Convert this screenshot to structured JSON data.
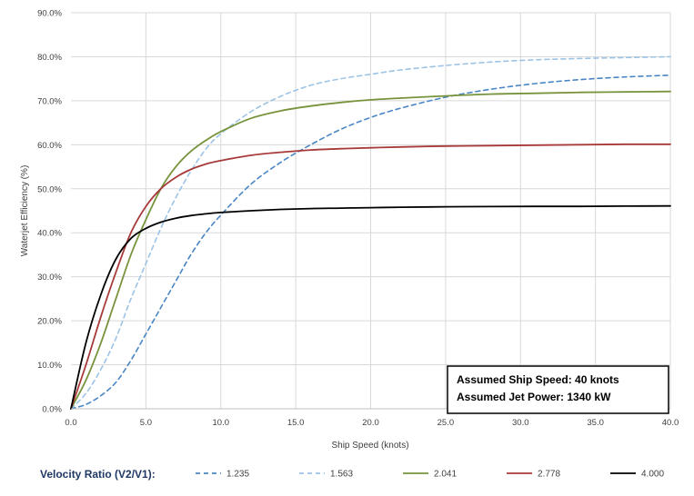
{
  "chart_data": {
    "type": "line",
    "title": "",
    "xlabel": "Ship Speed (knots)",
    "ylabel": "Waterjet Efficiency (%)",
    "xlim": [
      0,
      40
    ],
    "ylim": [
      0,
      90
    ],
    "x_ticks": [
      "0.0",
      "5.0",
      "10.0",
      "15.0",
      "20.0",
      "25.0",
      "30.0",
      "35.0",
      "40.0"
    ],
    "y_ticks": [
      "0.0%",
      "10.0%",
      "20.0%",
      "30.0%",
      "40.0%",
      "50.0%",
      "60.0%",
      "70.0%",
      "80.0%",
      "90.0%"
    ],
    "grid": true,
    "legend_title": "Velocity Ratio (V2/V1):",
    "legend_position": "bottom",
    "annotation": [
      "Assumed Ship Speed: 40 knots",
      "Assumed Jet Power: 1340 kW"
    ],
    "x": [
      0,
      1,
      2,
      3,
      4,
      5,
      6,
      7,
      8,
      9,
      10,
      12,
      14,
      16,
      18,
      20,
      22,
      25,
      28,
      31,
      34,
      37,
      40
    ],
    "series": [
      {
        "name": "1.235",
        "color": "#4a86c5",
        "dash": "dashed",
        "values": [
          0,
          1,
          3,
          6,
          11,
          17,
          23,
          29,
          35,
          40,
          44,
          51,
          56,
          60,
          63.5,
          66.2,
          68.3,
          70.8,
          72.6,
          73.9,
          74.8,
          75.4,
          75.8
        ]
      },
      {
        "name": "1.563",
        "color": "#9dc3e6",
        "dash": "dashed",
        "values": [
          0,
          3.5,
          9,
          16,
          25,
          33,
          41,
          48,
          54,
          59,
          62.5,
          67.5,
          71,
          73.5,
          75,
          76,
          77,
          78,
          78.8,
          79.3,
          79.6,
          79.8,
          80
        ]
      },
      {
        "name": "2.041",
        "color": "#77933c",
        "dash": "solid",
        "values": [
          0,
          6.5,
          15,
          25,
          35,
          43,
          50,
          55,
          58.5,
          61,
          63,
          66,
          67.7,
          68.8,
          69.6,
          70.2,
          70.6,
          71.1,
          71.5,
          71.7,
          71.9,
          72,
          72.1
        ]
      },
      {
        "name": "2.778",
        "color": "#a83a3a",
        "dash": "solid",
        "values": [
          0,
          10,
          21,
          31,
          40,
          46,
          50,
          52.6,
          54.4,
          55.6,
          56.4,
          57.6,
          58.3,
          58.8,
          59.1,
          59.3,
          59.5,
          59.7,
          59.8,
          59.9,
          60,
          60.1,
          60.1
        ]
      },
      {
        "name": "4.000",
        "color": "#000000",
        "dash": "solid",
        "values": [
          0,
          15,
          26,
          34,
          38.7,
          41,
          42.4,
          43.3,
          43.9,
          44.3,
          44.6,
          45,
          45.3,
          45.5,
          45.6,
          45.7,
          45.8,
          45.9,
          45.95,
          46,
          46,
          46.05,
          46.1
        ]
      }
    ]
  }
}
